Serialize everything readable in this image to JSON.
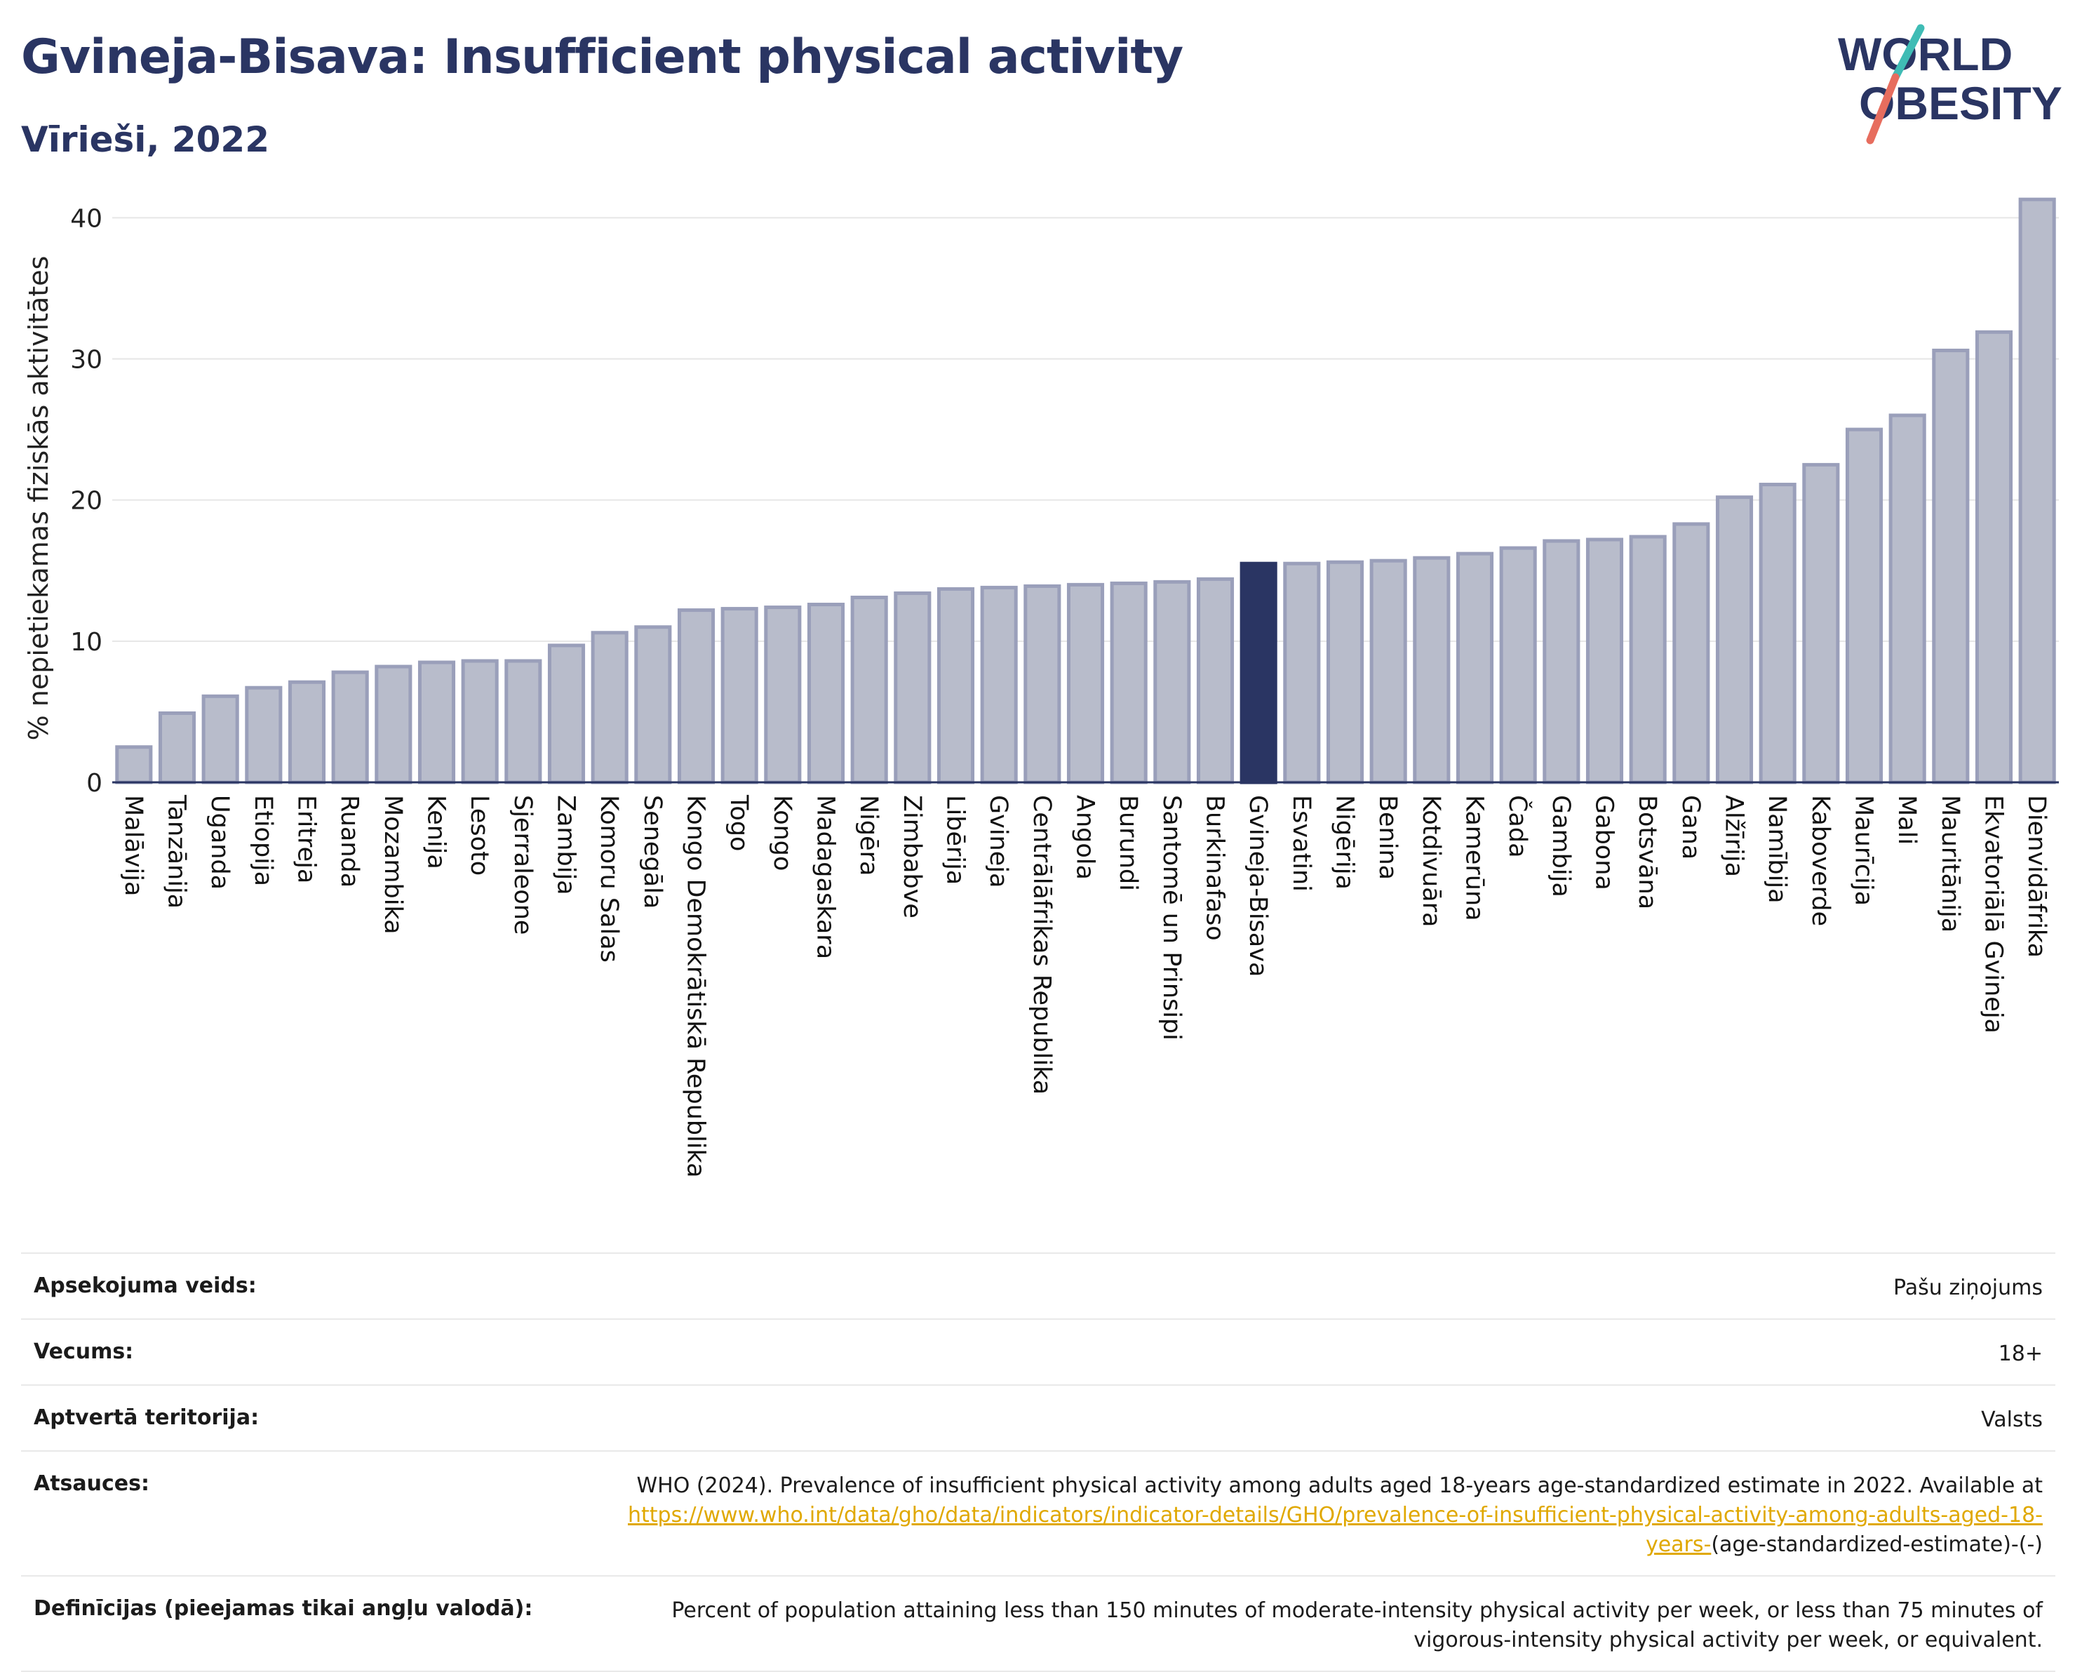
{
  "header": {
    "title": "Gvineja-Bisava: Insufficient physical activity",
    "subtitle": "Vīrieši, 2022"
  },
  "logo": {
    "line1": "WORLD",
    "line2": "OBESITY"
  },
  "chart_data": {
    "type": "bar",
    "title": "Gvineja-Bisava: Insufficient physical activity",
    "subtitle": "Vīrieši, 2022",
    "ylabel": "% nepietiekamas fiziskās aktivitātes",
    "xlabel": "",
    "ylim": [
      0,
      43
    ],
    "yticks": [
      0,
      10,
      20,
      30,
      40
    ],
    "grid": true,
    "highlight": "Gvineja-Bisava",
    "colors": {
      "bar": "#b8bccb",
      "bar_edge": "#9a9fba",
      "highlight": "#2a3563",
      "axis": "#2a3563",
      "grid": "#e6e6e6"
    },
    "categories": [
      "Malāvija",
      "Tanzānija",
      "Uganda",
      "Etiopija",
      "Eritreja",
      "Ruanda",
      "Mozambika",
      "Kenija",
      "Lesoto",
      "Sjerraleone",
      "Zambija",
      "Komoru Salas",
      "Senegāla",
      "Kongo Demokrātiskā Republika",
      "Togo",
      "Kongo",
      "Madagaskara",
      "Nigēra",
      "Zimbabve",
      "Libērija",
      "Gvineja",
      "Centrālāfrikas Republika",
      "Angola",
      "Burundi",
      "Santomē un Prinsipi",
      "Burkinafaso",
      "Gvineja-Bisava",
      "Esvatini",
      "Nigērija",
      "Benina",
      "Kotdivuāra",
      "Kamerūna",
      "Čada",
      "Gambija",
      "Gabona",
      "Botsvāna",
      "Gana",
      "Alžīrija",
      "Namībija",
      "Kaboverde",
      "Maurīcija",
      "Mali",
      "Mauritānija",
      "Ekvatoriālā Gvineja",
      "Dienvidāfrika"
    ],
    "values": [
      2.5,
      4.9,
      6.1,
      6.7,
      7.1,
      7.8,
      8.2,
      8.5,
      8.6,
      8.6,
      9.7,
      10.6,
      11.0,
      12.2,
      12.3,
      12.4,
      12.6,
      13.1,
      13.4,
      13.7,
      13.8,
      13.9,
      14.0,
      14.1,
      14.2,
      14.4,
      15.5,
      15.5,
      15.6,
      15.7,
      15.9,
      16.2,
      16.6,
      17.1,
      17.2,
      17.4,
      18.3,
      20.2,
      21.1,
      22.5,
      25.0,
      26.0,
      30.6,
      31.9,
      41.3
    ]
  },
  "meta": {
    "rows": [
      {
        "key": "Apsekojuma veids:",
        "value": "Pašu ziņojums"
      },
      {
        "key": "Vecums:",
        "value": "18+"
      },
      {
        "key": "Aptvertā teritorija:",
        "value": "Valsts"
      }
    ],
    "sources": {
      "key": "Atsauces:",
      "text": "WHO (2024). Prevalence of insufficient physical activity among adults aged 18-years age-standardized estimate in 2022. Available at",
      "link": "https://www.who.int/data/gho/data/indicators/indicator-details/GHO/prevalence-of-insufficient-physical-activity-among-adults-aged-18-years-",
      "tail": "(age-standardized-estimate)-(-)"
    },
    "definitions": {
      "key": "Definīcijas (pieejamas tikai angļu valodā):",
      "value": "Percent of population attaining less than 150 minutes of moderate-intensity physical activity per week, or less than 75 minutes of vigorous-intensity physical activity per week, or equivalent."
    }
  }
}
